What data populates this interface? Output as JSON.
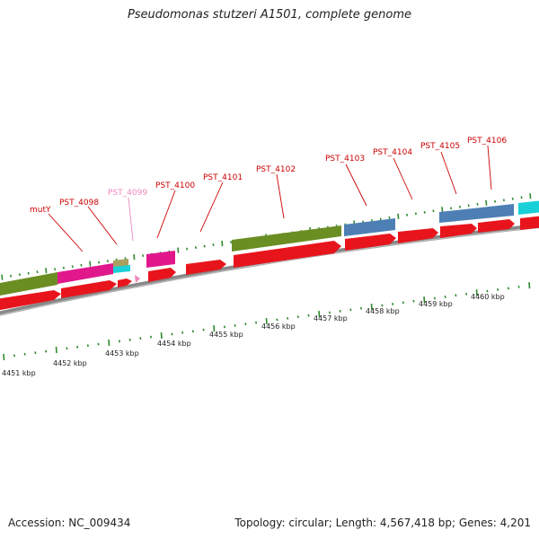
{
  "title": "Pseudomonas stutzeri A1501, complete genome",
  "accession": "Accession: NC_009434",
  "summary": "Topology: circular; Length: 4,567,418 bp; Genes: 4,201",
  "colors": {
    "cds": "#e8141c",
    "olive": "#6b8e23",
    "magenta": "#e0188c",
    "steelblue": "#4d7fb5",
    "cyan": "#1ad0d8",
    "tan": "#a8a060",
    "tick_green": "#2e8b2e",
    "label_red": "#cc0000",
    "label_pink": "#ee88bb",
    "backbone": "#888888"
  },
  "gene_labels": [
    {
      "text": "mutY",
      "color": "label_red"
    },
    {
      "text": "PST_4098",
      "color": "label_red"
    },
    {
      "text": "PST_4099",
      "color": "label_pink"
    },
    {
      "text": "PST_4100",
      "color": "label_red"
    },
    {
      "text": "PST_4101",
      "color": "label_red"
    },
    {
      "text": "PST_4102",
      "color": "label_red"
    },
    {
      "text": "PST_4103",
      "color": "label_red"
    },
    {
      "text": "PST_4104",
      "color": "label_red"
    },
    {
      "text": "PST_4105",
      "color": "label_red"
    },
    {
      "text": "PST_4106",
      "color": "label_red"
    }
  ],
  "kbp_labels": [
    "4451 kbp",
    "4452 kbp",
    "4453 kbp",
    "4454 kbp",
    "4455 kbp",
    "4456 kbp",
    "4457 kbp",
    "4458 kbp",
    "4459 kbp",
    "4460 kbp"
  ]
}
